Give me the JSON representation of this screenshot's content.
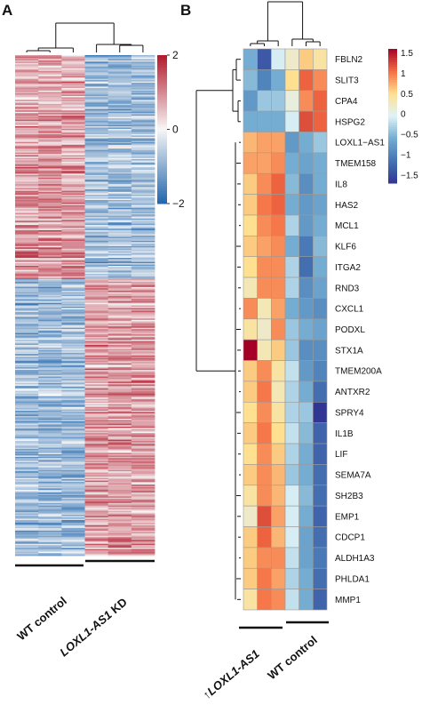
{
  "panel_labels": [
    "A",
    "B"
  ],
  "chart_data": [
    {
      "type": "heatmap",
      "panel": "A",
      "columns": [
        "WT control",
        "WT control",
        "WT control",
        "LOXL1-AS1 KD",
        "LOXL1-AS1 KD",
        "LOXL1-AS1 KD"
      ],
      "groups": [
        {
          "label": "WT control",
          "columns": 3
        },
        {
          "label": "LOXL1-AS1 KD",
          "label_italic": "LOXL1-AS1",
          "label_plain": " KD",
          "columns": 3
        }
      ],
      "row_blocks": [
        {
          "n_genes_approx": 170,
          "wt_mean": 0.8,
          "kd_mean": -0.8
        },
        {
          "n_genes_approx": 210,
          "wt_mean": -0.8,
          "kd_mean": 0.8
        }
      ],
      "colorbar": {
        "ticks": [
          2,
          0,
          -2
        ],
        "tick_labels": [
          "2",
          "0",
          "−2"
        ],
        "range": [
          -2,
          2
        ]
      },
      "colormap": [
        "#2166ac",
        "#f7f7f7",
        "#b2182b"
      ],
      "dendrogram": "columns"
    },
    {
      "type": "heatmap",
      "panel": "B",
      "genes": [
        "FBLN2",
        "SLIT3",
        "CPA4",
        "HSPG2",
        "LOXL1−AS1",
        "TMEM158",
        "IL8",
        "HAS2",
        "MCL1",
        "KLF6",
        "ITGA2",
        "RND3",
        "CXCL1",
        "PODXL",
        "STX1A",
        "TMEM200A",
        "ANTXR2",
        "SPRY4",
        "IL1B",
        "LIF",
        "SEMA7A",
        "SH2B3",
        "EMP1",
        "CDCP1",
        "ALDH1A3",
        "PHLDA1",
        "MMP1"
      ],
      "groups": [
        {
          "label": "LOXL1-AS1",
          "prefix": "↑",
          "italic": true,
          "columns": 3
        },
        {
          "label": "WT control",
          "columns": 3
        }
      ],
      "values": [
        [
          -0.6,
          -1.4,
          -0.1,
          0.2,
          0.6,
          0.4
        ],
        [
          -0.5,
          -1.0,
          -0.6,
          0.5,
          1.1,
          0.9
        ],
        [
          -0.8,
          -0.4,
          -0.4,
          0.1,
          0.9,
          1.1
        ],
        [
          -0.6,
          -0.6,
          -0.6,
          -0.1,
          1.2,
          1.1
        ],
        [
          0.7,
          0.8,
          0.8,
          -0.8,
          -0.6,
          -0.4
        ],
        [
          0.8,
          0.8,
          0.9,
          -0.6,
          -0.7,
          -0.6
        ],
        [
          0.6,
          0.9,
          1.1,
          -0.5,
          -0.9,
          -0.6
        ],
        [
          0.6,
          1.0,
          1.1,
          -0.6,
          -0.8,
          -0.7
        ],
        [
          0.5,
          0.9,
          1.0,
          -0.3,
          -0.8,
          -0.6
        ],
        [
          0.6,
          0.8,
          0.9,
          -0.6,
          -1.1,
          -0.5
        ],
        [
          0.5,
          0.9,
          0.9,
          -0.3,
          -1.2,
          -0.6
        ],
        [
          0.3,
          0.9,
          0.9,
          -0.3,
          -0.9,
          -0.7
        ],
        [
          0.9,
          0.3,
          0.8,
          -0.6,
          -0.8,
          -0.9
        ],
        [
          0.4,
          0.2,
          0.9,
          -0.4,
          -0.6,
          -0.7
        ],
        [
          1.6,
          0.3,
          0.6,
          -0.4,
          -0.9,
          -0.9
        ],
        [
          0.6,
          0.9,
          0.4,
          -0.2,
          -0.8,
          -1.0
        ],
        [
          0.6,
          1.0,
          0.3,
          -0.3,
          -0.6,
          -1.2
        ],
        [
          0.5,
          0.9,
          0.4,
          -0.3,
          -0.4,
          -1.7
        ],
        [
          0.6,
          1.0,
          0.5,
          -0.2,
          -0.5,
          -1.3
        ],
        [
          0.5,
          0.9,
          0.6,
          -0.3,
          -0.6,
          -1.3
        ],
        [
          0.6,
          0.9,
          0.7,
          -0.4,
          -0.6,
          -1.2
        ],
        [
          0.4,
          0.9,
          0.7,
          -0.1,
          -0.5,
          -1.2
        ],
        [
          0.2,
          1.2,
          0.8,
          -0.1,
          -0.6,
          -1.3
        ],
        [
          0.6,
          1.1,
          0.7,
          -0.1,
          -0.7,
          -1.2
        ],
        [
          0.6,
          0.9,
          0.9,
          -0.2,
          -0.7,
          -1.1
        ],
        [
          0.6,
          1.0,
          0.8,
          -0.3,
          -0.6,
          -1.2
        ],
        [
          0.4,
          1.0,
          0.9,
          -0.2,
          -0.6,
          -1.3
        ]
      ],
      "colorbar": {
        "ticks": [
          1.5,
          1,
          0.5,
          0,
          -0.5,
          -1,
          -1.5
        ],
        "tick_labels": [
          "1.5",
          "1",
          "0.5",
          "0",
          "−0.5",
          "−1",
          "−1.5"
        ],
        "range": [
          -1.7,
          1.6
        ]
      },
      "colormap": [
        "#313695",
        "#4575b4",
        "#74add1",
        "#e0f3f8",
        "#fee090",
        "#f46d43",
        "#a50026"
      ],
      "dendrogram": "rows and columns"
    }
  ]
}
